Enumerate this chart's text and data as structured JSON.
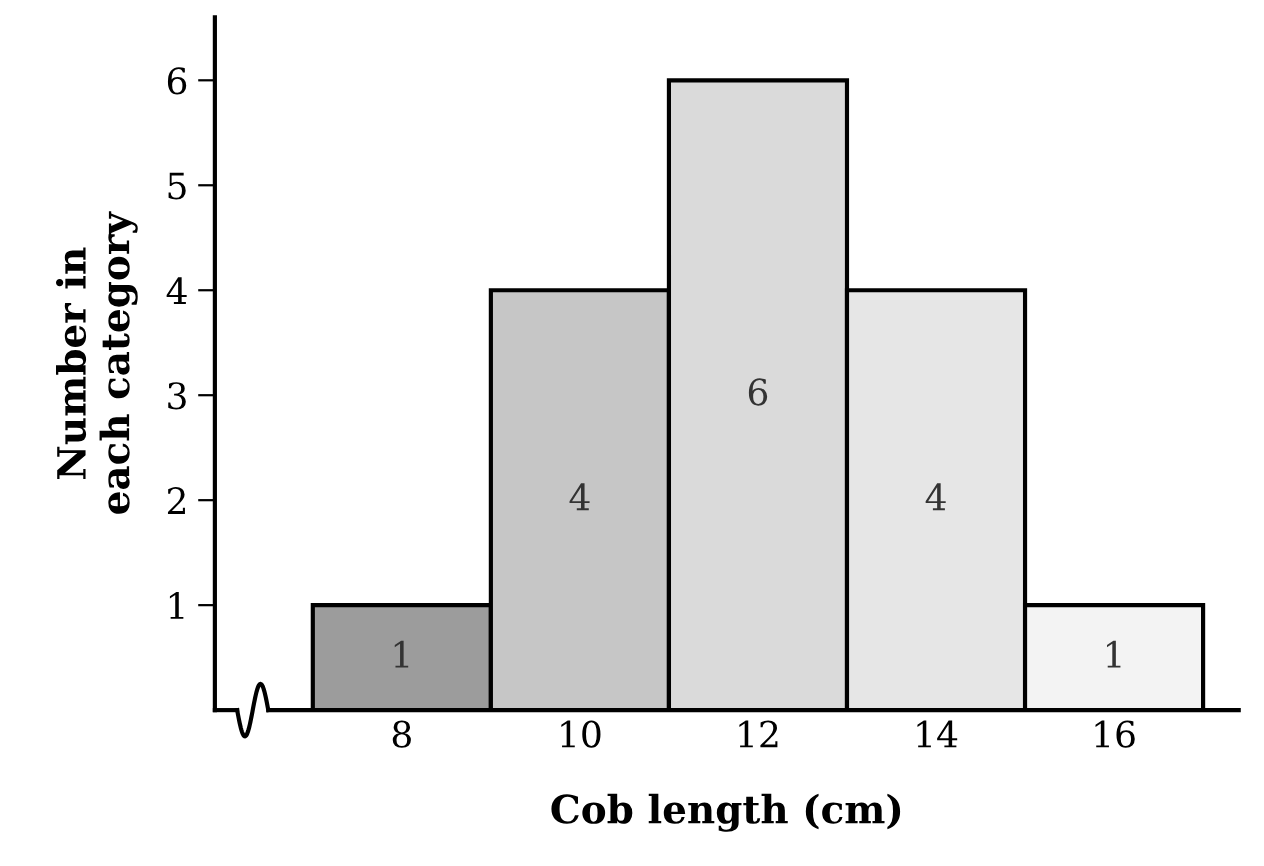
{
  "chart_data": {
    "type": "histogram",
    "xlabel": "Cob length (cm)",
    "ylabel": "Number in\neach category",
    "bins": [
      7,
      9,
      11,
      13,
      15,
      17
    ],
    "values": [
      1,
      4,
      6,
      4,
      1
    ],
    "colors": [
      "#9c9c9c",
      "#c6c6c6",
      "#dadada",
      "#e6e6e6",
      "#f3f3f3"
    ],
    "data_labels": true,
    "xlim": [
      5.9,
      17.4
    ],
    "ylim": [
      0,
      6.6
    ],
    "xticks": [
      8,
      10,
      12,
      14,
      16
    ],
    "yticks": [
      1,
      2,
      3,
      4,
      5,
      6
    ],
    "grid": false,
    "legend": false
  }
}
